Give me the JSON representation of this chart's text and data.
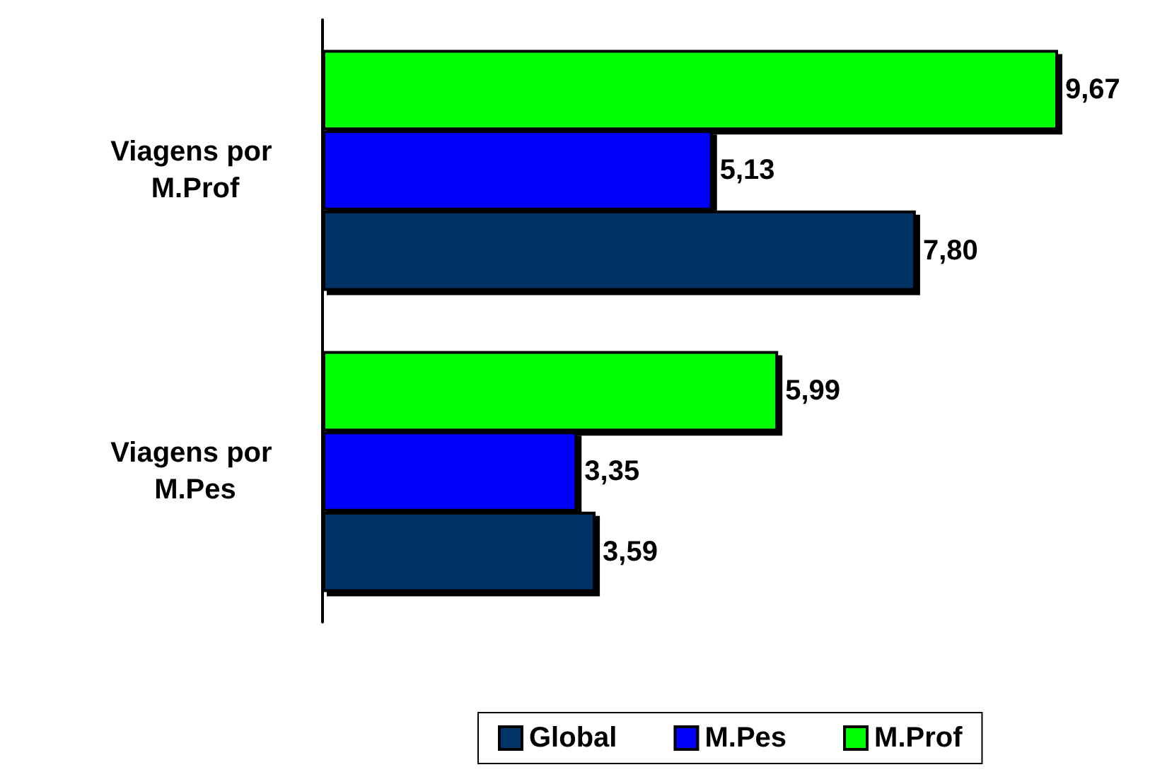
{
  "chart_data": {
    "type": "bar",
    "orientation": "horizontal",
    "categories": [
      "Viagens por M.Prof",
      "Viagens por M.Pes"
    ],
    "series": [
      {
        "name": "Global",
        "color": "#003366",
        "values": [
          7.8,
          3.59
        ],
        "value_labels": [
          "7,80",
          "3,59"
        ]
      },
      {
        "name": "M.Pes",
        "color": "#0000ff",
        "values": [
          5.13,
          3.35
        ],
        "value_labels": [
          "5,13",
          "3,35"
        ]
      },
      {
        "name": "M.Prof",
        "color": "#00ff00",
        "values": [
          9.67,
          5.99
        ],
        "value_labels": [
          "9,67",
          "5,99"
        ]
      }
    ],
    "legend": "bottom",
    "grid": false
  }
}
